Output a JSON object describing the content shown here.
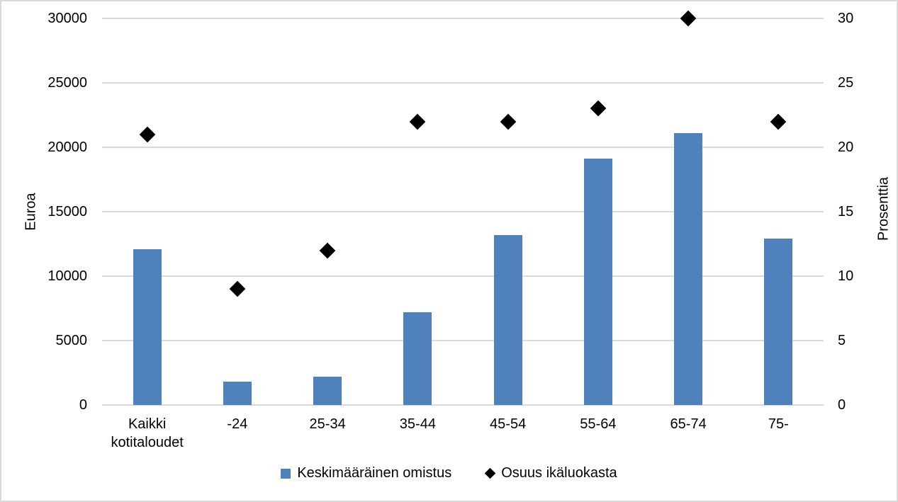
{
  "chart_data": {
    "type": "combo",
    "title": "",
    "categories": [
      "Kaikki kotitaloudet",
      "-24",
      "25-34",
      "35-44",
      "45-54",
      "55-64",
      "65-74",
      "75-"
    ],
    "series": [
      {
        "name": "Keskimääräinen omistus",
        "type": "bar",
        "axis": "left",
        "color": "#4F81BD",
        "values": [
          12100,
          1800,
          2200,
          7200,
          13200,
          19100,
          21100,
          12900
        ]
      },
      {
        "name": "Osuus ikäluokasta",
        "type": "scatter",
        "marker": "diamond",
        "axis": "right",
        "color": "#000000",
        "values": [
          21,
          9,
          12,
          22,
          22,
          23,
          30,
          22
        ]
      }
    ],
    "left_axis": {
      "label": "Euroa",
      "min": 0,
      "max": 30000,
      "step": 5000,
      "ticks": [
        "0",
        "5000",
        "10000",
        "15000",
        "20000",
        "25000",
        "30000"
      ]
    },
    "right_axis": {
      "label": "Prosenttia",
      "min": 0,
      "max": 30,
      "step": 5,
      "ticks": [
        "0",
        "5",
        "10",
        "15",
        "20",
        "25",
        "30"
      ]
    },
    "legend": {
      "position": "bottom",
      "items": [
        "Keskimääräinen omistus",
        "Osuus ikäluokasta"
      ]
    },
    "grid": true,
    "colors": {
      "bar": "#4F81BD",
      "marker": "#000000",
      "gridline": "#D9D9D9",
      "axis_line": "#D9D9D9",
      "text": "#000000",
      "background": "#FFFFFF",
      "border": "#D9D9D9"
    }
  }
}
